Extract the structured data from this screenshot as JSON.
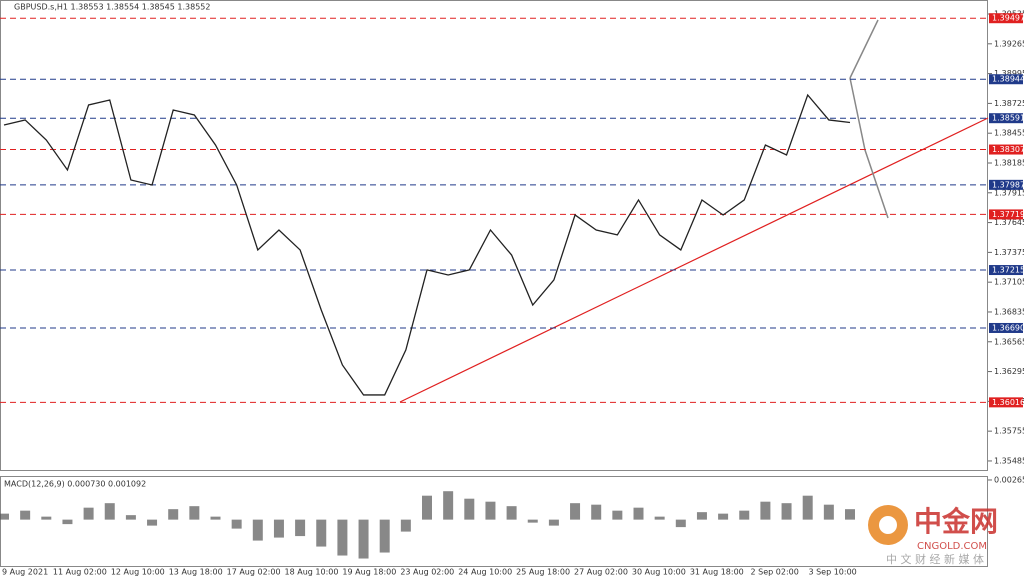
{
  "chart_data": {
    "type": "line",
    "title": "GBPUSD.s,H1 1.38553 1.38554 1.38545 1.38552",
    "values": [
      1.38529,
      1.38575,
      1.38393,
      1.38122,
      1.38711,
      1.38756,
      1.38031,
      1.37986,
      1.38665,
      1.3862,
      1.38348,
      1.37986,
      1.37397,
      1.37578,
      1.37397,
      1.36853,
      1.36355,
      1.36083,
      1.36083,
      1.36491,
      1.37216,
      1.3717,
      1.37216,
      1.37578,
      1.37351,
      1.36898,
      1.37125,
      1.37714,
      1.37578,
      1.37533,
      1.3785,
      1.37533,
      1.37397,
      1.3785,
      1.37714,
      1.3785,
      1.38348,
      1.38258,
      1.38801,
      1.38575,
      1.38552
    ],
    "color": "#222222",
    "ylim": [
      1.35403,
      1.39662
    ],
    "yticks": [
      1.39535,
      1.39265,
      1.38995,
      1.38725,
      1.38455,
      1.38185,
      1.37915,
      1.37645,
      1.37375,
      1.37105,
      1.36835,
      1.36565,
      1.36295,
      1.36025,
      1.35755,
      1.35485
    ],
    "x_labels": [
      "9 Aug 2021",
      "11 Aug 02:00",
      "12 Aug 10:00",
      "13 Aug 18:00",
      "17 Aug 02:00",
      "18 Aug 10:00",
      "19 Aug 18:00",
      "23 Aug 02:00",
      "24 Aug 10:00",
      "25 Aug 18:00",
      "27 Aug 02:00",
      "30 Aug 10:00",
      "31 Aug 18:00",
      "2 Sep 02:00",
      "3 Sep 10:00"
    ],
    "levels": [
      {
        "value": 1.39497,
        "color": "#e02020"
      },
      {
        "value": 1.38944,
        "color": "#203a8a"
      },
      {
        "value": 1.38591,
        "color": "#203a8a"
      },
      {
        "value": 1.38307,
        "color": "#e02020"
      },
      {
        "value": 1.37987,
        "color": "#203a8a"
      },
      {
        "value": 1.37719,
        "color": "#e02020"
      },
      {
        "value": 1.37215,
        "color": "#203a8a"
      },
      {
        "value": {
          "value": 1.3669,
          "label": "1.36690"
        },
        "color": "#203a8a"
      },
      {
        "value": 1.36016,
        "color": "#e02020"
      }
    ],
    "macd": {
      "title": "MACD(12,26,9) 0.000730 0.001092",
      "color": "#555555",
      "values": [
        0.0004,
        0.0006,
        0.0002,
        -0.0003,
        0.0008,
        0.0011,
        0.0003,
        -0.0004,
        0.0007,
        0.0009,
        0.0002,
        -0.0006,
        -0.0014,
        -0.0012,
        -0.0011,
        -0.0018,
        -0.0024,
        -0.0026,
        -0.0022,
        -0.0008,
        0.0016,
        0.0019,
        0.0014,
        0.0012,
        0.0009,
        -0.0002,
        -0.0004,
        0.0011,
        0.001,
        0.0006,
        0.0008,
        0.0002,
        -0.0005,
        0.0005,
        0.0004,
        0.0006,
        0.0012,
        0.0011,
        0.0016,
        0.001,
        0.0007
      ],
      "ylim": [
        -0.0031,
        0.00285
      ],
      "yticks": [
        0.002651
      ]
    }
  },
  "watermark": {
    "brand": "中金网",
    "site": "CNGOLD.COM",
    "tagline": "中 文 财 经 新 媒 体"
  }
}
